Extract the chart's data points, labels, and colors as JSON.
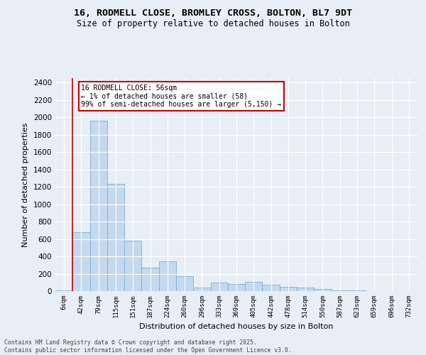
{
  "title_line1": "16, RODMELL CLOSE, BROMLEY CROSS, BOLTON, BL7 9DT",
  "title_line2": "Size of property relative to detached houses in Bolton",
  "xlabel": "Distribution of detached houses by size in Bolton",
  "ylabel": "Number of detached properties",
  "bar_labels": [
    "6sqm",
    "42sqm",
    "79sqm",
    "115sqm",
    "151sqm",
    "187sqm",
    "224sqm",
    "260sqm",
    "296sqm",
    "333sqm",
    "369sqm",
    "405sqm",
    "442sqm",
    "478sqm",
    "514sqm",
    "550sqm",
    "587sqm",
    "623sqm",
    "659sqm",
    "696sqm",
    "732sqm"
  ],
  "bar_values": [
    5,
    680,
    1960,
    1230,
    580,
    270,
    340,
    175,
    40,
    100,
    80,
    110,
    70,
    50,
    40,
    25,
    10,
    5,
    3,
    2,
    1
  ],
  "bar_color": "#c5d8ed",
  "bar_edge_color": "#7aafd4",
  "bar_edge_width": 0.6,
  "vline_color": "#cc0000",
  "vline_linewidth": 1.2,
  "annotation_title": "16 RODMELL CLOSE: 56sqm",
  "annotation_line2": "← 1% of detached houses are smaller (58)",
  "annotation_line3": "99% of semi-detached houses are larger (5,150) →",
  "annotation_box_color": "#ffffff",
  "annotation_box_edge_color": "#cc0000",
  "ylim": [
    0,
    2450
  ],
  "yticks": [
    0,
    200,
    400,
    600,
    800,
    1000,
    1200,
    1400,
    1600,
    1800,
    2000,
    2200,
    2400
  ],
  "background_color": "#e8eef5",
  "grid_color": "#ffffff",
  "footer_line1": "Contains HM Land Registry data © Crown copyright and database right 2025.",
  "footer_line2": "Contains public sector information licensed under the Open Government Licence v3.0."
}
